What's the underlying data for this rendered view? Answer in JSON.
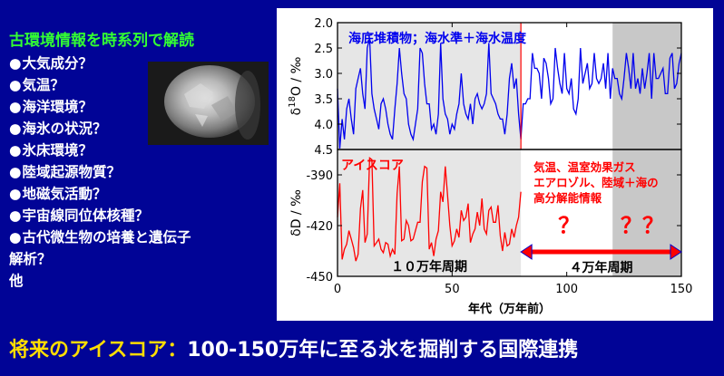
{
  "left": {
    "title": "古環境情報を時系列で解読",
    "items": [
      "大気成分？",
      "気温？",
      "海洋環境？",
      "海氷の状況？",
      "氷床環境？",
      "陸域起源物質？",
      "地磁気活動？",
      "宇宙線同位体核種？",
      "古代微生物の培養と遺伝子"
    ],
    "bullet": "●",
    "extra_lines": [
      "解析？",
      "他"
    ]
  },
  "footer": {
    "highlight": "将来のアイスコア：",
    "rest": "100-150万年に至る氷を掘削する国際連携"
  },
  "colors": {
    "background": "#010496",
    "title_green": "#33ff33",
    "footer_yellow": "#ffdd00",
    "series_blue": "#0000ee",
    "series_red": "#ff0000",
    "shade_light": "#e6e6e6",
    "shade_dark": "#c8c8c8"
  },
  "photo": {
    "icon": "ice-core-photo"
  },
  "chart_data": [
    {
      "type": "line",
      "title": "海底堆積物；海水準＋海水温度",
      "ylabel_main": "δ",
      "ylabel_sup": "18",
      "ylabel_tail": "O / ‰",
      "ylim": [
        4.5,
        2.0
      ],
      "yticks": [
        2.0,
        2.5,
        3.0,
        3.5,
        4.0,
        4.5
      ],
      "ytick_labels": [
        "2.0",
        "2.5",
        "3.0",
        "3.5",
        "4.0",
        "4.5"
      ],
      "xlim": [
        0,
        150
      ],
      "inverted_y": true,
      "series": [
        {
          "color": "#0000ee",
          "x": [
            0,
            1,
            2,
            3,
            4,
            5,
            6,
            7,
            8,
            9,
            10,
            11,
            12,
            13,
            14,
            15,
            16,
            17,
            18,
            19,
            20,
            21,
            22,
            23,
            24,
            25,
            26,
            27,
            28,
            29,
            30,
            31,
            32,
            33,
            34,
            35,
            36,
            37,
            38,
            39,
            40,
            41,
            42,
            43,
            44,
            45,
            46,
            47,
            48,
            49,
            50,
            51,
            52,
            53,
            54,
            55,
            56,
            57,
            58,
            59,
            60,
            61,
            62,
            63,
            64,
            65,
            66,
            67,
            68,
            69,
            70,
            71,
            72,
            73,
            74,
            75,
            76,
            77,
            78,
            79,
            80,
            81,
            82,
            83,
            84,
            85,
            86,
            87,
            88,
            89,
            90,
            91,
            92,
            93,
            94,
            95,
            96,
            97,
            98,
            99,
            100,
            101,
            102,
            103,
            104,
            105,
            106,
            107,
            108,
            109,
            110,
            111,
            112,
            113,
            114,
            115,
            116,
            117,
            118,
            119,
            120,
            121,
            122,
            123,
            124,
            125,
            126,
            127,
            128,
            129,
            130,
            131,
            132,
            133,
            134,
            135,
            136,
            137,
            138,
            139,
            140,
            141,
            142,
            143,
            144,
            145,
            146,
            147,
            148,
            149,
            150
          ],
          "values": [
            3.3,
            4.9,
            3.9,
            4.3,
            3.7,
            3.5,
            3.9,
            4.2,
            3.3,
            3.1,
            2.9,
            3.4,
            3.7,
            2.5,
            2.3,
            3.4,
            3.7,
            3.9,
            4.1,
            3.6,
            3.5,
            3.7,
            4.0,
            4.2,
            4.3,
            3.7,
            3.2,
            2.5,
            3.0,
            3.4,
            3.5,
            4.0,
            4.2,
            4.3,
            4.0,
            3.7,
            2.5,
            2.6,
            3.2,
            3.6,
            3.6,
            4.1,
            4.0,
            4.2,
            3.8,
            2.4,
            3.5,
            3.8,
            3.9,
            4.2,
            4.0,
            4.1,
            3.8,
            3.6,
            3.0,
            3.6,
            3.8,
            3.9,
            3.6,
            4.0,
            3.5,
            3.4,
            3.6,
            3.7,
            3.6,
            3.4,
            2.4,
            3.4,
            3.5,
            3.6,
            3.8,
            3.9,
            3.9,
            4.2,
            3.8,
            3.1,
            2.8,
            3.3,
            3.1,
            3.8,
            4.3,
            3.6,
            3.6,
            3.5,
            3.5,
            2.6,
            2.9,
            2.9,
            3.0,
            3.5,
            2.7,
            2.8,
            3.1,
            3.6,
            3.5,
            2.5,
            2.9,
            3.2,
            3.4,
            2.6,
            3.3,
            3.4,
            3.1,
            3.7,
            3.8,
            3.5,
            2.5,
            3.2,
            3.0,
            2.8,
            3.3,
            3.2,
            2.6,
            3.1,
            3.2,
            3.1,
            2.8,
            3.3,
            2.6,
            3.5,
            2.9,
            3.1,
            3.1,
            3.4,
            3.5,
            3.1,
            2.6,
            2.9,
            3.3,
            2.6,
            3.3,
            3.1,
            3.4,
            2.9,
            3.3,
            3.0,
            2.6,
            3.5,
            2.6,
            3.1,
            3.1,
            3.0,
            2.9,
            3.4,
            3.4,
            2.7,
            2.6,
            3.3,
            3.2,
            2.8,
            2.6
          ]
        }
      ]
    },
    {
      "type": "line",
      "title": "アイスコア",
      "ylabel": "δD / ‰",
      "ylim": [
        -450,
        -375
      ],
      "yticks": [
        -450,
        -420,
        -390
      ],
      "ytick_labels": [
        "-450",
        "-420",
        "-390"
      ],
      "xlim": [
        0,
        150
      ],
      "xticks": [
        0,
        50,
        100,
        150
      ],
      "xtick_labels": [
        "0",
        "50",
        "100",
        "150"
      ],
      "xlabel": "年代（万年前）",
      "series": [
        {
          "color": "#ff0000",
          "x": [
            0,
            1,
            2,
            3,
            4,
            5,
            6,
            7,
            8,
            9,
            10,
            11,
            12,
            13,
            14,
            15,
            16,
            17,
            18,
            19,
            20,
            21,
            22,
            23,
            24,
            25,
            26,
            27,
            28,
            29,
            30,
            31,
            32,
            33,
            34,
            35,
            36,
            37,
            38,
            39,
            40,
            41,
            42,
            43,
            44,
            45,
            46,
            47,
            48,
            49,
            50,
            51,
            52,
            53,
            54,
            55,
            56,
            57,
            58,
            59,
            60,
            61,
            62,
            63,
            64,
            65,
            66,
            67,
            68,
            69,
            70,
            71,
            72,
            73,
            74,
            75,
            76,
            77,
            78,
            79,
            80
          ],
          "values": [
            -415,
            -395,
            -440,
            -434,
            -431,
            -423,
            -428,
            -433,
            -441,
            -437,
            -410,
            -399,
            -430,
            -425,
            -380,
            -381,
            -432,
            -430,
            -428,
            -434,
            -436,
            -430,
            -431,
            -438,
            -434,
            -437,
            -401,
            -385,
            -429,
            -428,
            -417,
            -420,
            -429,
            -428,
            -423,
            -418,
            -418,
            -394,
            -385,
            -386,
            -434,
            -430,
            -438,
            -428,
            -423,
            -400,
            -406,
            -385,
            -402,
            -420,
            -432,
            -429,
            -422,
            -427,
            -411,
            -417,
            -415,
            -407,
            -430,
            -425,
            -422,
            -412,
            -420,
            -404,
            -422,
            -425,
            -411,
            -409,
            -418,
            -418,
            -408,
            -426,
            -435,
            -424,
            -432,
            -431,
            -422,
            -427,
            -420,
            -415,
            -400
          ]
        }
      ]
    }
  ],
  "annotations": {
    "vertical_line_x": 80,
    "shade_regions": [
      {
        "from": 0,
        "to": 80,
        "color": "#e6e6e6"
      },
      {
        "from": 120,
        "to": 150,
        "color": "#c8c8c8"
      }
    ],
    "period_100k": "１０万年周期",
    "period_40k": "４万年周期",
    "future_note_line1": "気温、温室効果ガス",
    "future_note_line2": "エアロゾル、陸域＋海の",
    "future_note_line3": "高分解能情報",
    "q1": "？",
    "q2": "？？",
    "arrow_from": 80,
    "arrow_to": 150
  }
}
